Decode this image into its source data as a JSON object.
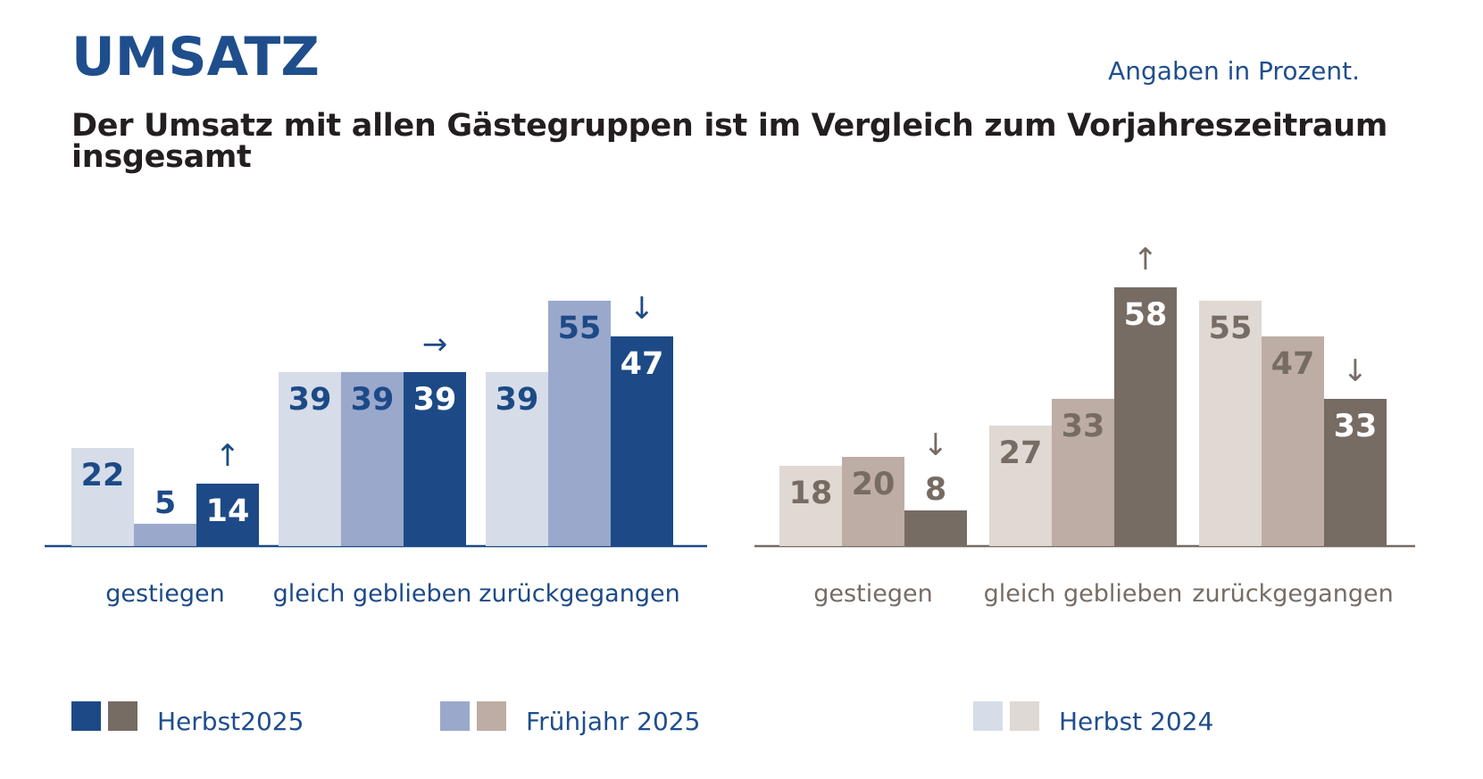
{
  "header": {
    "title": "UMSATZ",
    "note": "Angaben in Prozent.",
    "subtitle": "Der Umsatz mit allen Gästegruppen ist im Vergleich zum Vorjahreszeitraum insgesamt"
  },
  "colors": {
    "blue_title": "#1f4e8c",
    "blue_dark": "#1d4a86",
    "blue_mid": "#9aa8cc",
    "blue_light": "#d6dde9",
    "brown_dark": "#766c64",
    "brown_mid": "#bdada4",
    "brown_light": "#e0d8d3",
    "brown_text": "#766c64",
    "axis_blue": "#1d4a86",
    "axis_brown": "#766c64"
  },
  "chart_data": [
    {
      "type": "bar",
      "name": "left-chart",
      "palette": "blue",
      "categories": [
        "gestiegen",
        "gleich geblieben",
        "zurückgegangen"
      ],
      "series": [
        {
          "name": "Herbst 2024",
          "values": [
            22,
            39,
            39
          ]
        },
        {
          "name": "Frühjahr 2025",
          "values": [
            5,
            39,
            55
          ]
        },
        {
          "name": "Herbst2025",
          "values": [
            14,
            39,
            47
          ]
        }
      ],
      "trend_arrows": [
        "↑",
        "→",
        "↓"
      ],
      "ylim": [
        0,
        60
      ]
    },
    {
      "type": "bar",
      "name": "right-chart",
      "palette": "brown",
      "categories": [
        "gestiegen",
        "gleich geblieben",
        "zurückgegangen"
      ],
      "series": [
        {
          "name": "Herbst 2024",
          "values": [
            18,
            27,
            55
          ]
        },
        {
          "name": "Frühjahr 2025",
          "values": [
            20,
            33,
            47
          ]
        },
        {
          "name": "Herbst2025",
          "values": [
            8,
            58,
            33
          ]
        }
      ],
      "trend_arrows": [
        "↓",
        "↑",
        "↓"
      ],
      "ylim": [
        0,
        60
      ]
    }
  ],
  "legend": [
    {
      "label": "Herbst2025",
      "colors": [
        "#1d4a86",
        "#766c64"
      ]
    },
    {
      "label": "Frühjahr 2025",
      "colors": [
        "#9aa8cc",
        "#bdada4"
      ]
    },
    {
      "label": "Herbst 2024",
      "colors": [
        "#d6dde9",
        "#e0d8d3"
      ]
    }
  ]
}
